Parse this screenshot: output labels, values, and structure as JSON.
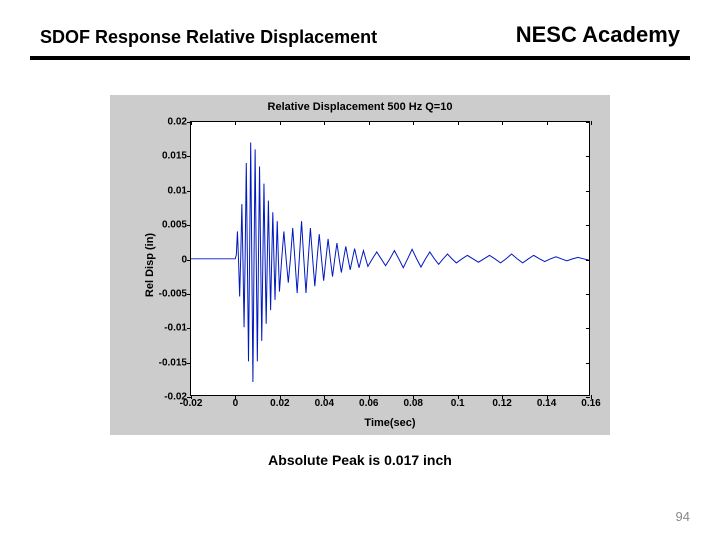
{
  "header": {
    "left_title": "SDOF Response Relative Displacement",
    "right_title": "NESC Academy"
  },
  "caption": "Absolute Peak is 0.017 inch",
  "page_number": "94",
  "chart": {
    "type": "line",
    "title": "Relative Displacement  500 Hz  Q=10",
    "xlabel": "Time(sec)",
    "ylabel": "Rel Disp (in)",
    "background_color": "#cccccc",
    "plot_bg": "#ffffff",
    "axis_color": "#000000",
    "title_fontsize": 11,
    "label_fontsize": 11,
    "tick_fontsize": 10,
    "line_color": "#0018c0",
    "line_width": 1,
    "xlim": [
      -0.02,
      0.16
    ],
    "ylim": [
      -0.02,
      0.02
    ],
    "xticks": [
      -0.02,
      0,
      0.02,
      0.04,
      0.06,
      0.08,
      0.1,
      0.12,
      0.14,
      0.16
    ],
    "yticks": [
      -0.02,
      -0.015,
      -0.01,
      -0.005,
      0,
      0.005,
      0.01,
      0.015,
      0.02
    ],
    "series": [
      {
        "t": -0.02,
        "y": 0.0
      },
      {
        "t": -0.002,
        "y": 0.0
      },
      {
        "t": 0.0,
        "y": 0.0
      },
      {
        "t": 0.001,
        "y": 0.004
      },
      {
        "t": 0.002,
        "y": -0.0055
      },
      {
        "t": 0.003,
        "y": 0.008
      },
      {
        "t": 0.004,
        "y": -0.01
      },
      {
        "t": 0.005,
        "y": 0.014
      },
      {
        "t": 0.006,
        "y": -0.015
      },
      {
        "t": 0.007,
        "y": 0.017
      },
      {
        "t": 0.008,
        "y": -0.018
      },
      {
        "t": 0.009,
        "y": 0.016
      },
      {
        "t": 0.01,
        "y": -0.015
      },
      {
        "t": 0.011,
        "y": 0.0135
      },
      {
        "t": 0.012,
        "y": -0.012
      },
      {
        "t": 0.013,
        "y": 0.011
      },
      {
        "t": 0.014,
        "y": -0.0095
      },
      {
        "t": 0.015,
        "y": 0.0085
      },
      {
        "t": 0.016,
        "y": -0.0075
      },
      {
        "t": 0.017,
        "y": 0.0068
      },
      {
        "t": 0.018,
        "y": -0.006
      },
      {
        "t": 0.019,
        "y": 0.0055
      },
      {
        "t": 0.02,
        "y": -0.0048
      },
      {
        "t": 0.022,
        "y": 0.004
      },
      {
        "t": 0.024,
        "y": -0.0035
      },
      {
        "t": 0.026,
        "y": 0.0045
      },
      {
        "t": 0.028,
        "y": -0.005
      },
      {
        "t": 0.03,
        "y": 0.0055
      },
      {
        "t": 0.032,
        "y": -0.005
      },
      {
        "t": 0.034,
        "y": 0.0045
      },
      {
        "t": 0.036,
        "y": -0.004
      },
      {
        "t": 0.038,
        "y": 0.0036
      },
      {
        "t": 0.04,
        "y": -0.0032
      },
      {
        "t": 0.042,
        "y": 0.0029
      },
      {
        "t": 0.044,
        "y": -0.0026
      },
      {
        "t": 0.046,
        "y": 0.0023
      },
      {
        "t": 0.048,
        "y": -0.002
      },
      {
        "t": 0.05,
        "y": 0.0018
      },
      {
        "t": 0.052,
        "y": -0.0016
      },
      {
        "t": 0.054,
        "y": 0.0015
      },
      {
        "t": 0.056,
        "y": -0.0013
      },
      {
        "t": 0.058,
        "y": 0.0012
      },
      {
        "t": 0.06,
        "y": -0.0011
      },
      {
        "t": 0.064,
        "y": 0.001
      },
      {
        "t": 0.068,
        "y": -0.001
      },
      {
        "t": 0.072,
        "y": 0.0012
      },
      {
        "t": 0.076,
        "y": -0.0013
      },
      {
        "t": 0.08,
        "y": 0.0014
      },
      {
        "t": 0.084,
        "y": -0.0012
      },
      {
        "t": 0.088,
        "y": 0.001
      },
      {
        "t": 0.092,
        "y": -0.0008
      },
      {
        "t": 0.096,
        "y": 0.0007
      },
      {
        "t": 0.1,
        "y": -0.0006
      },
      {
        "t": 0.105,
        "y": 0.0005
      },
      {
        "t": 0.11,
        "y": -0.0005
      },
      {
        "t": 0.115,
        "y": 0.0005
      },
      {
        "t": 0.12,
        "y": -0.0006
      },
      {
        "t": 0.125,
        "y": 0.0007
      },
      {
        "t": 0.13,
        "y": -0.0006
      },
      {
        "t": 0.135,
        "y": 0.0005
      },
      {
        "t": 0.14,
        "y": -0.0004
      },
      {
        "t": 0.145,
        "y": 0.0003
      },
      {
        "t": 0.15,
        "y": -0.0003
      },
      {
        "t": 0.155,
        "y": 0.0002
      },
      {
        "t": 0.16,
        "y": -0.0002
      }
    ]
  }
}
